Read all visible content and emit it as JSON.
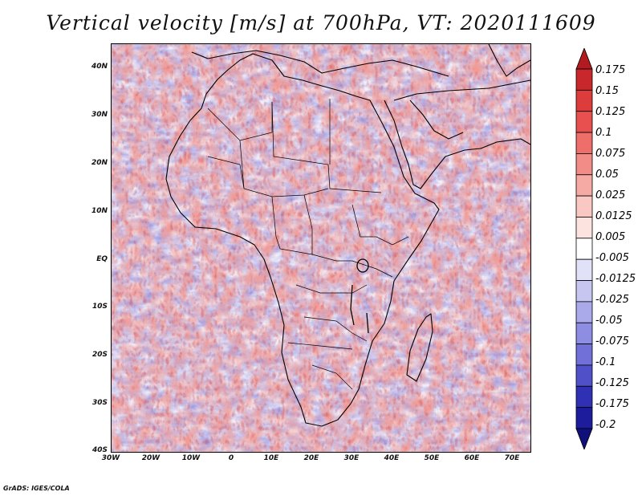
{
  "title": "Vertical velocity [m/s] at 700hPa, VT: 2020111609",
  "credit": "GrADS: IGES/COLA",
  "axes": {
    "lat_labels": [
      "40N",
      "30N",
      "20N",
      "10N",
      "EQ",
      "10S",
      "20S",
      "30S",
      "40S"
    ],
    "lon_labels": [
      "30W",
      "20W",
      "10W",
      "0",
      "10E",
      "20E",
      "30E",
      "40E",
      "50E",
      "60E",
      "70E"
    ]
  },
  "colorbar": {
    "labels": [
      "0.175",
      "0.15",
      "0.125",
      "0.1",
      "0.075",
      "0.05",
      "0.025",
      "0.0125",
      "0.005",
      "-0.005",
      "-0.0125",
      "-0.025",
      "-0.05",
      "-0.075",
      "-0.1",
      "-0.125",
      "-0.175",
      "-0.2"
    ],
    "colors": [
      "#b01a20",
      "#c8282c",
      "#dc3c3c",
      "#e85050",
      "#ee6f6a",
      "#f28c86",
      "#f6aaa4",
      "#f9c8c2",
      "#fce3df",
      "#ffffff",
      "#e1e1f7",
      "#c6c6f0",
      "#aaaaea",
      "#8d8de2",
      "#7070d8",
      "#5050c8",
      "#3030b4",
      "#1c1c9c",
      "#10107a"
    ]
  },
  "chart_data": {
    "type": "heatmap",
    "title": "Vertical velocity [m/s] at 700hPa, VT: 2020111609",
    "variable": "Vertical velocity",
    "units": "m/s",
    "level": "700hPa",
    "valid_time": "2020111609",
    "xlim": [
      -30,
      75
    ],
    "ylim": [
      -40,
      45
    ],
    "xlabel": "",
    "ylabel": "",
    "levels": [
      -0.2,
      -0.175,
      -0.125,
      -0.1,
      -0.075,
      -0.05,
      -0.025,
      -0.0125,
      -0.005,
      0.005,
      0.0125,
      0.025,
      0.05,
      0.075,
      0.1,
      0.125,
      0.15,
      0.175
    ]
  }
}
